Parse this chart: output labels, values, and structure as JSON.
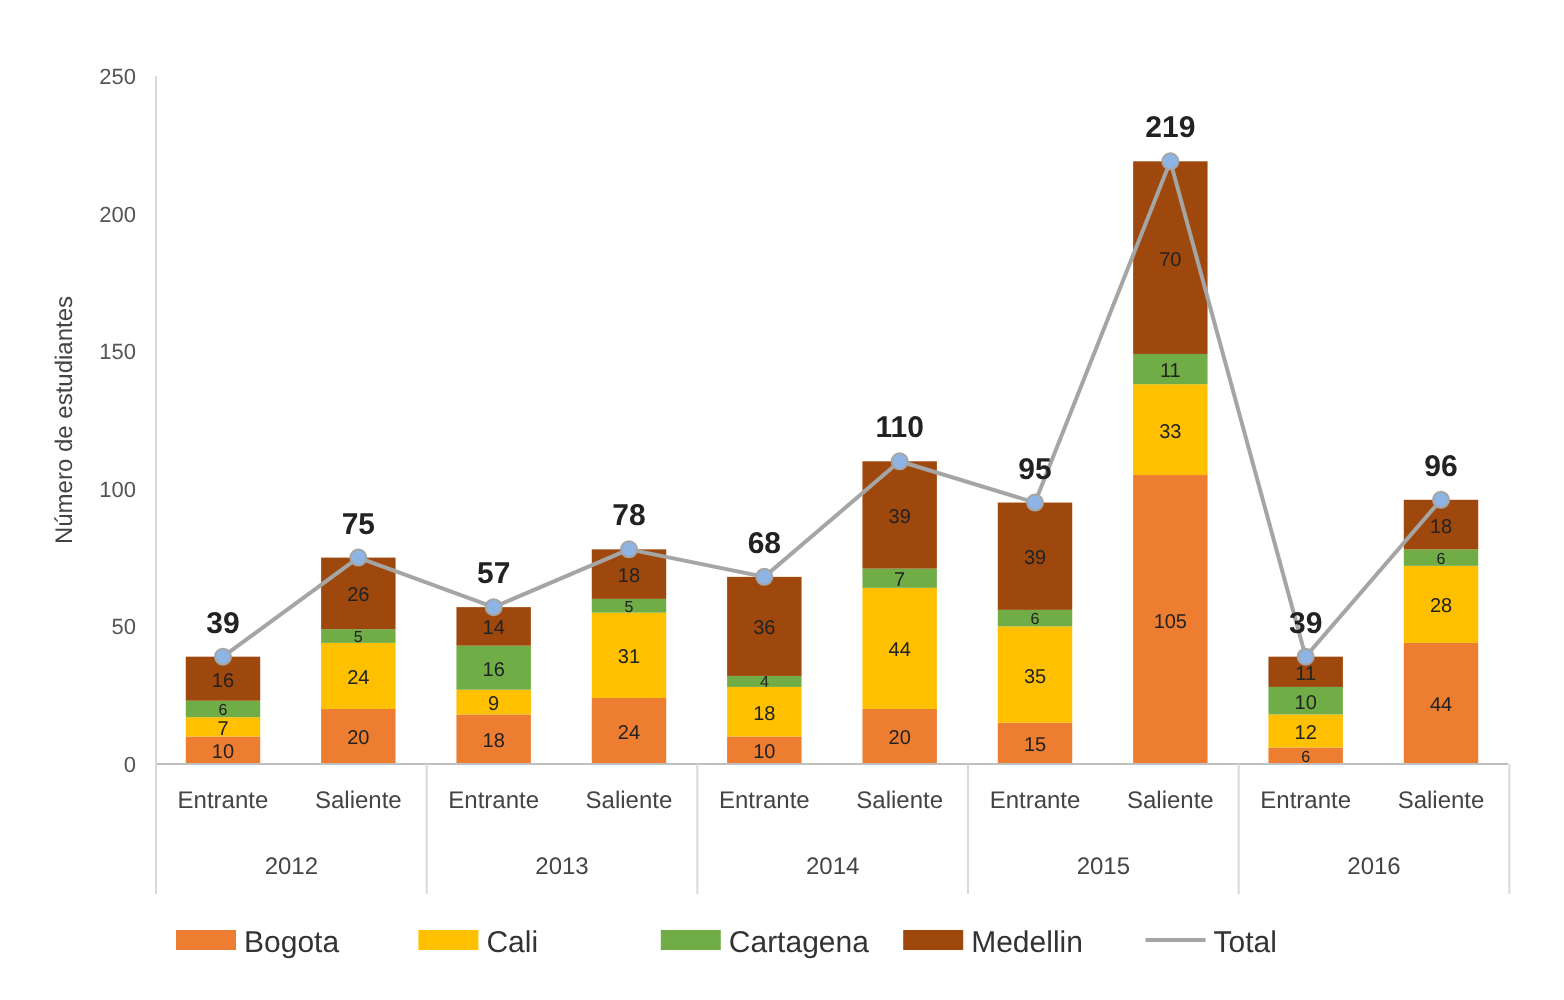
{
  "chart_data": {
    "type": "bar",
    "stacked": true,
    "ylabel": "Número de estudiantes",
    "categories": [
      "Entrante",
      "Saliente",
      "Entrante",
      "Saliente",
      "Entrante",
      "Saliente",
      "Entrante",
      "Saliente",
      "Entrante",
      "Saliente"
    ],
    "annotations": [
      "2012",
      "2013",
      "2014",
      "2015",
      "2016"
    ],
    "ylim": [
      0,
      250
    ],
    "yticks": [
      0,
      50,
      100,
      150,
      200,
      250
    ],
    "legend": "bottom",
    "grid": false,
    "series": [
      {
        "name": "Bogota",
        "color": "#ed7d31",
        "values": [
          10,
          20,
          18,
          24,
          10,
          20,
          15,
          105,
          6,
          44
        ],
        "value_labels": [
          "10",
          "20",
          "18",
          "24",
          "10",
          "20",
          "15",
          "105",
          "6",
          "44"
        ]
      },
      {
        "name": "Cali",
        "color": "#ffc000",
        "values": [
          7,
          24,
          9,
          31,
          18,
          44,
          35,
          33,
          12,
          28
        ],
        "value_labels": [
          "7",
          "24",
          "9",
          "31",
          "18",
          "44",
          "35",
          "33",
          "12",
          "28"
        ]
      },
      {
        "name": "Cartagena",
        "color": "#70ad47",
        "values": [
          6,
          5,
          16,
          5,
          4,
          7,
          6,
          11,
          10,
          6
        ],
        "value_labels": [
          "6",
          "5",
          "16",
          "5",
          "4",
          "7",
          "6",
          "11",
          "10",
          "6"
        ]
      },
      {
        "name": "Medellin",
        "color": "#9e480e",
        "values": [
          16,
          26,
          14,
          18,
          36,
          39,
          39,
          70,
          11,
          18
        ],
        "value_labels": [
          "16",
          "26",
          "14",
          "18",
          "36",
          "39",
          "39",
          "70",
          "11",
          "18"
        ]
      },
      {
        "name": "Total",
        "type": "line",
        "color": "#a5a5a5",
        "marker": "circle",
        "values": [
          39,
          75,
          57,
          78,
          68,
          110,
          95,
          219,
          39,
          96
        ],
        "value_labels": [
          "39",
          "75",
          "57",
          "78",
          "68",
          "110",
          "95",
          "219",
          "39",
          "96"
        ]
      }
    ]
  }
}
